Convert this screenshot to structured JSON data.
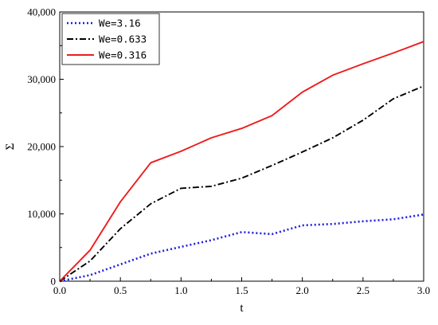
{
  "chart_data": {
    "type": "line",
    "xlabel": "t",
    "ylabel": "Σ",
    "xlim": [
      0,
      3
    ],
    "ylim": [
      0,
      40000
    ],
    "xticks": [
      0,
      0.5,
      1,
      1.5,
      2,
      2.5,
      3
    ],
    "xtick_labels": [
      "0.0",
      "0.5",
      "1.0",
      "1.5",
      "2.0",
      "2.5",
      "3.0"
    ],
    "yticks": [
      0,
      10000,
      20000,
      30000,
      40000
    ],
    "ytick_labels": [
      "0",
      "10,000",
      "20,000",
      "30,000",
      "40,000"
    ],
    "grid": false,
    "legend_position": "top-left",
    "x": [
      0,
      0.25,
      0.5,
      0.75,
      1.0,
      1.25,
      1.5,
      1.75,
      2.0,
      2.25,
      2.5,
      2.75,
      3.0
    ],
    "series": [
      {
        "name": "We=3.16",
        "color": "#1f1fe0",
        "style": "dotted",
        "values": [
          0,
          900,
          2500,
          4100,
          5100,
          6100,
          7300,
          7000,
          8300,
          8500,
          8900,
          9200,
          9900
        ]
      },
      {
        "name": "We=0.633",
        "color": "#000000",
        "style": "dashdot",
        "values": [
          0,
          3000,
          7800,
          11500,
          13800,
          14100,
          15300,
          17200,
          19200,
          21300,
          23900,
          27100,
          29000
        ]
      },
      {
        "name": "We=0.316",
        "color": "#ee1c1c",
        "style": "solid",
        "values": [
          0,
          4600,
          11800,
          17600,
          19300,
          21300,
          22700,
          24600,
          28100,
          30600,
          32300,
          33900,
          35600
        ]
      }
    ]
  }
}
